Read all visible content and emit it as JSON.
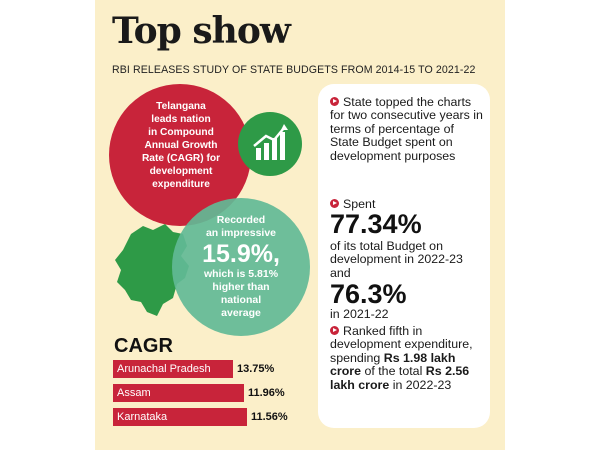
{
  "header": {
    "title": "Top show",
    "subtitle": "RBI RELEASES STUDY OF STATE BUDGETS FROM 2014-15 TO 2021-22"
  },
  "red_circle": {
    "lines": [
      "Telangana",
      "leads nation",
      "in Compound",
      "Annual Growth",
      "Rate (CAGR) for",
      "development",
      "expenditure"
    ]
  },
  "green_circle": {
    "line1": "Recorded",
    "line2": "an impressive",
    "value": "15.9%,",
    "line3": "which is 5.81%",
    "line4": "higher than",
    "line5": "national",
    "line6": "average"
  },
  "cagr": {
    "title": "CAGR",
    "rows": [
      {
        "state": "Arunachal Pradesh",
        "value": "13.75%",
        "percent": 13.75
      },
      {
        "state": "Assam",
        "value": "11.96%",
        "percent": 11.96
      },
      {
        "state": "Karnataka",
        "value": "11.56%",
        "percent": 11.56
      }
    ]
  },
  "facts": {
    "fact1": "State topped the charts for two consecutive years in terms of percentage of State Budget spent on development purposes",
    "spent_label": "Spent",
    "spent_value": "77.34%",
    "spent_desc": "of its total Budget on development in 2022-23 and",
    "spent_value2": "76.3%",
    "spent_year2": "in 2021-22",
    "ranked_line": "Ranked fifth in development expenditure, spending",
    "amount1": "Rs 1.98 lakh crore",
    "of_total": "of the total",
    "amount2": "Rs 2.56 lakh crore",
    "year": "in 2022-23"
  },
  "colors": {
    "background": "#fbefc9",
    "accent_red": "#c8243a",
    "accent_green": "#2e9a47",
    "circle_green": "#62ba96"
  },
  "icons": [
    "growth-chart-icon",
    "telangana-map-icon",
    "bullet-arrow-icon"
  ]
}
